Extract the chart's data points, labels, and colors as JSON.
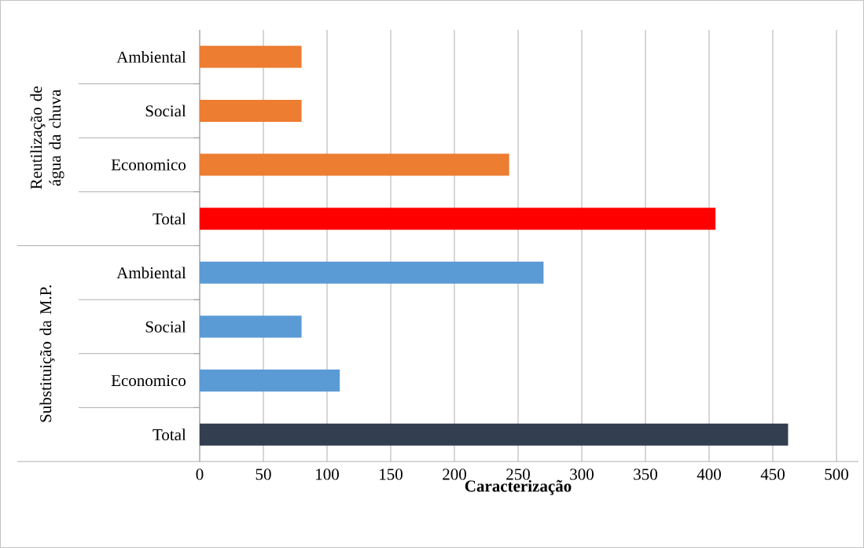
{
  "chart_data": {
    "type": "bar",
    "orientation": "horizontal",
    "categories": [
      "Ambiental",
      "Social",
      "Economico",
      "Total",
      "Ambiental",
      "Social",
      "Economico",
      "Total"
    ],
    "values": [
      80,
      80,
      243,
      405,
      270,
      80,
      110,
      462
    ],
    "colors": [
      "#ed7d31",
      "#ed7d31",
      "#ed7d31",
      "#ff0000",
      "#5b9bd5",
      "#5b9bd5",
      "#5b9bd5",
      "#333f50"
    ],
    "xlabel": "Caracterização",
    "xlim": [
      0,
      500
    ],
    "xticks": [
      0,
      50,
      100,
      150,
      200,
      250,
      300,
      350,
      400,
      450,
      500
    ],
    "grid": "x",
    "annotations": [
      "Reutilização de água da chuva",
      "Substituição da M.P."
    ]
  }
}
